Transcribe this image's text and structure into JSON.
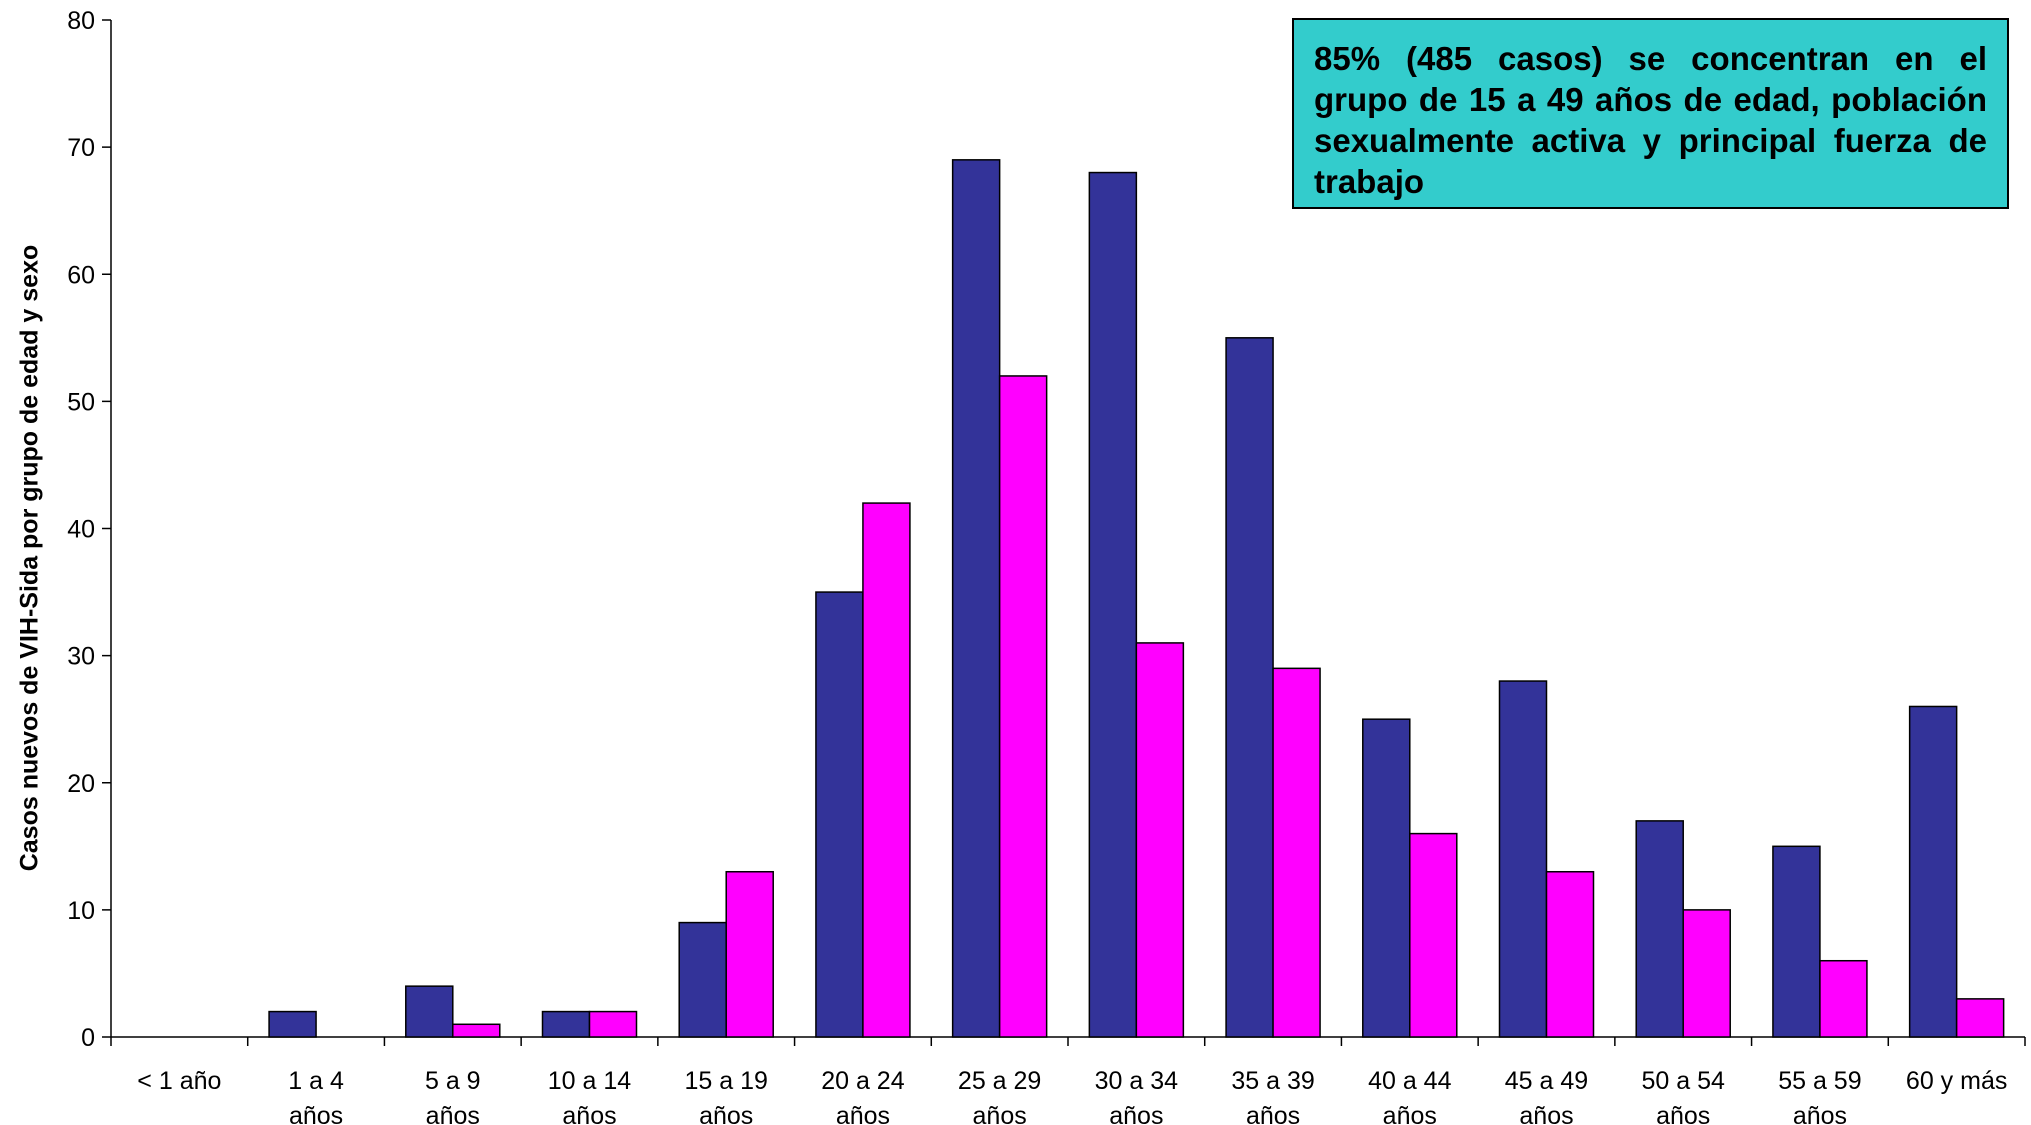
{
  "chart_data": {
    "type": "bar",
    "categories": [
      [
        "< 1 año"
      ],
      [
        "1 a 4",
        "años"
      ],
      [
        "5 a 9",
        "años"
      ],
      [
        "10 a 14",
        "años"
      ],
      [
        "15 a 19",
        "años"
      ],
      [
        "20 a 24",
        "años"
      ],
      [
        "25 a 29",
        "años"
      ],
      [
        "30 a 34",
        "años"
      ],
      [
        "35 a 39",
        "años"
      ],
      [
        "40 a 44",
        "años"
      ],
      [
        "45 a 49",
        "años"
      ],
      [
        "50 a 54",
        "años"
      ],
      [
        "55 a 59",
        "años"
      ],
      [
        "60 y más"
      ]
    ],
    "series": [
      {
        "values": [
          0,
          2,
          4,
          2,
          9,
          35,
          69,
          68,
          55,
          25,
          28,
          17,
          15,
          26
        ],
        "color": "#333399"
      },
      {
        "values": [
          0,
          0,
          1,
          2,
          13,
          42,
          52,
          31,
          29,
          16,
          13,
          10,
          6,
          3
        ],
        "color": "#FF00FF"
      }
    ],
    "ylabel": "Casos nuevos de VIH-Sida por grupo de edad y sexo",
    "ylim": [
      0,
      80
    ],
    "yticks": [
      0,
      10,
      20,
      30,
      40,
      50,
      60,
      70,
      80
    ],
    "grid": false,
    "legend": "none",
    "annotation": "85% (485 casos) se concentran en el grupo de 15 a 49 años de edad, población sexualmente activa y principal fuerza de trabajo"
  }
}
